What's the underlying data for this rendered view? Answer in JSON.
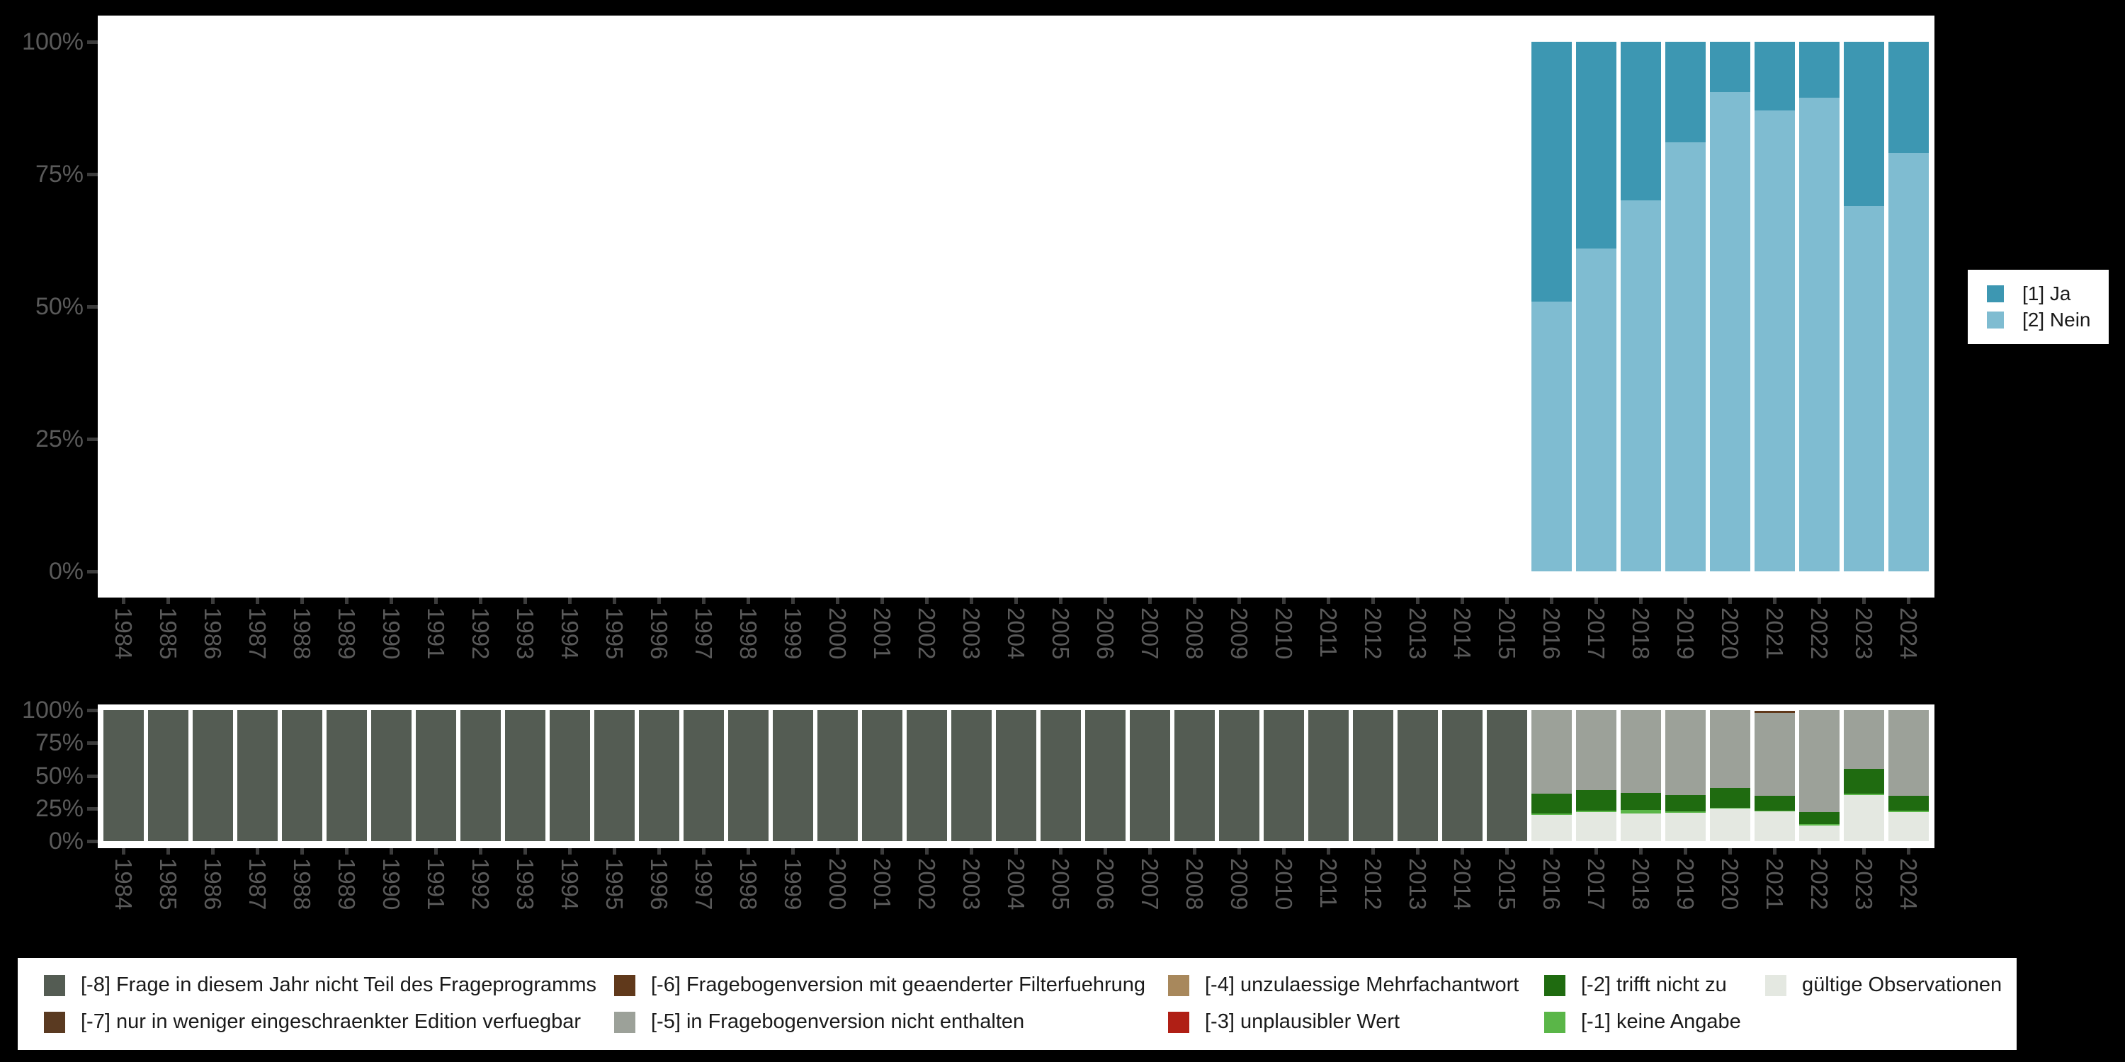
{
  "colors": {
    "page_bg": "#000000",
    "plot_bg": "#ffffff",
    "ja": "#3d97b2",
    "nein": "#7fbcd1",
    "m8": "#545c53",
    "m7": "#5a3a21",
    "m6": "#60391b",
    "m5": "#9ca199",
    "m4": "#a8885c",
    "m3": "#b01f15",
    "m2": "#1f6b10",
    "m1": "#5ab648",
    "valid": "#e4e8e1",
    "axis_text": "#5a5a5a",
    "tick": "#3c3c3c",
    "legend_text": "#1a1a1a"
  },
  "y_axis_labels": [
    "100%",
    "75%",
    "50%",
    "25%",
    "0%"
  ],
  "legend_right": {
    "items": [
      {
        "label": "[1] Ja",
        "colorKey": "ja"
      },
      {
        "label": "[2] Nein",
        "colorKey": "nein"
      }
    ]
  },
  "legend_bottom": {
    "items": [
      {
        "label": "[-8] Frage in diesem Jahr nicht Teil des Frageprogramms",
        "colorKey": "m8",
        "row": 0,
        "col": 0
      },
      {
        "label": "[-6] Fragebogenversion mit geaenderter Filterfuehrung",
        "colorKey": "m6",
        "row": 0,
        "col": 1
      },
      {
        "label": "[-4] unzulaessige Mehrfachantwort",
        "colorKey": "m4",
        "row": 0,
        "col": 2
      },
      {
        "label": "[-2] trifft nicht zu",
        "colorKey": "m2",
        "row": 0,
        "col": 3
      },
      {
        "label": "gültige Observationen",
        "colorKey": "valid",
        "row": 0,
        "col": 4
      },
      {
        "label": "[-7] nur in weniger eingeschraenkter Edition verfuegbar",
        "colorKey": "m7",
        "row": 1,
        "col": 0
      },
      {
        "label": "[-5] in Fragebogenversion nicht enthalten",
        "colorKey": "m5",
        "row": 1,
        "col": 1
      },
      {
        "label": "[-3] unplausibler Wert",
        "colorKey": "m3",
        "row": 1,
        "col": 2
      },
      {
        "label": "[-1] keine Angabe",
        "colorKey": "m1",
        "row": 1,
        "col": 3
      }
    ]
  },
  "chart_data": [
    {
      "type": "bar",
      "stacked": true,
      "title": "",
      "xlabel": "",
      "ylabel": "",
      "ylim": [
        0,
        100
      ],
      "y_ticks": [
        "0%",
        "25%",
        "50%",
        "75%",
        "100%"
      ],
      "grid": false,
      "legend_position": "right",
      "categories": [
        1984,
        1985,
        1986,
        1987,
        1988,
        1989,
        1990,
        1991,
        1992,
        1993,
        1994,
        1995,
        1996,
        1997,
        1998,
        1999,
        2000,
        2001,
        2002,
        2003,
        2004,
        2005,
        2006,
        2007,
        2008,
        2009,
        2010,
        2011,
        2012,
        2013,
        2014,
        2015,
        2016,
        2017,
        2018,
        2019,
        2020,
        2021,
        2022,
        2023,
        2024
      ],
      "series": [
        {
          "name": "[1] Ja",
          "colorKey": "ja",
          "key": "ja",
          "values": [
            null,
            null,
            null,
            null,
            null,
            null,
            null,
            null,
            null,
            null,
            null,
            null,
            null,
            null,
            null,
            null,
            null,
            null,
            null,
            null,
            null,
            null,
            null,
            null,
            null,
            null,
            null,
            null,
            null,
            null,
            null,
            null,
            49,
            39,
            30,
            19,
            9.5,
            13,
            10.5,
            31,
            21
          ]
        },
        {
          "name": "[2] Nein",
          "colorKey": "nein",
          "key": "nein",
          "values": [
            null,
            null,
            null,
            null,
            null,
            null,
            null,
            null,
            null,
            null,
            null,
            null,
            null,
            null,
            null,
            null,
            null,
            null,
            null,
            null,
            null,
            null,
            null,
            null,
            null,
            null,
            null,
            null,
            null,
            null,
            null,
            null,
            51,
            61,
            70,
            81,
            90.5,
            87,
            89.5,
            69,
            79
          ]
        }
      ]
    },
    {
      "type": "bar",
      "stacked": true,
      "title": "",
      "xlabel": "",
      "ylabel": "",
      "ylim": [
        0,
        100
      ],
      "y_ticks": [
        "0%",
        "25%",
        "50%",
        "75%",
        "100%"
      ],
      "grid": false,
      "legend_position": "bottom",
      "categories": [
        1984,
        1985,
        1986,
        1987,
        1988,
        1989,
        1990,
        1991,
        1992,
        1993,
        1994,
        1995,
        1996,
        1997,
        1998,
        1999,
        2000,
        2001,
        2002,
        2003,
        2004,
        2005,
        2006,
        2007,
        2008,
        2009,
        2010,
        2011,
        2012,
        2013,
        2014,
        2015,
        2016,
        2017,
        2018,
        2019,
        2020,
        2021,
        2022,
        2023,
        2024
      ],
      "series": [
        {
          "name": "[-6] Fragebogenversion mit geaenderter Filterfuehrung",
          "colorKey": "m6",
          "key": "m6",
          "values": [
            0,
            0,
            0,
            0,
            0,
            0,
            0,
            0,
            0,
            0,
            0,
            0,
            0,
            0,
            0,
            0,
            0,
            0,
            0,
            0,
            0,
            0,
            0,
            0,
            0,
            0,
            0,
            0,
            0,
            0,
            0,
            0,
            0,
            0,
            0,
            0,
            0,
            1.5,
            0,
            0,
            0
          ]
        },
        {
          "name": "[-8] Frage in diesem Jahr nicht Teil des Frageprogramms",
          "colorKey": "m8",
          "key": "m8",
          "values": [
            100,
            100,
            100,
            100,
            100,
            100,
            100,
            100,
            100,
            100,
            100,
            100,
            100,
            100,
            100,
            100,
            100,
            100,
            100,
            100,
            100,
            100,
            100,
            100,
            100,
            100,
            100,
            100,
            100,
            100,
            100,
            100,
            0,
            0,
            0,
            0,
            0,
            0,
            0,
            0,
            0
          ]
        },
        {
          "name": "[-5] in Fragebogenversion nicht enthalten",
          "colorKey": "m5",
          "key": "m5",
          "values": [
            0,
            0,
            0,
            0,
            0,
            0,
            0,
            0,
            0,
            0,
            0,
            0,
            0,
            0,
            0,
            0,
            0,
            0,
            0,
            0,
            0,
            0,
            0,
            0,
            0,
            0,
            0,
            0,
            0,
            0,
            0,
            0,
            64,
            61,
            63.5,
            65,
            59.5,
            63.5,
            78,
            45,
            65.5
          ]
        },
        {
          "name": "[-2] trifft nicht zu",
          "colorKey": "m2",
          "key": "m2",
          "values": [
            0,
            0,
            0,
            0,
            0,
            0,
            0,
            0,
            0,
            0,
            0,
            0,
            0,
            0,
            0,
            0,
            0,
            0,
            0,
            0,
            0,
            0,
            0,
            0,
            0,
            0,
            0,
            0,
            0,
            0,
            0,
            0,
            15,
            15.5,
            12.5,
            12.5,
            15,
            11.5,
            9,
            19,
            11.5
          ]
        },
        {
          "name": "[-1] keine Angabe",
          "colorKey": "m1",
          "key": "m1",
          "values": [
            0,
            0,
            0,
            0,
            0,
            0,
            0,
            0,
            0,
            0,
            0,
            0,
            0,
            0,
            0,
            0,
            0,
            0,
            0,
            0,
            0,
            0,
            0,
            0,
            0,
            0,
            0,
            0,
            0,
            0,
            0,
            0,
            1,
            1.5,
            3,
            1,
            0.5,
            0.5,
            1,
            1,
            1
          ]
        },
        {
          "name": "gültige Observationen",
          "colorKey": "valid",
          "key": "valid",
          "values": [
            0,
            0,
            0,
            0,
            0,
            0,
            0,
            0,
            0,
            0,
            0,
            0,
            0,
            0,
            0,
            0,
            0,
            0,
            0,
            0,
            0,
            0,
            0,
            0,
            0,
            0,
            0,
            0,
            0,
            0,
            0,
            0,
            20,
            22,
            21,
            21.5,
            25,
            22.5,
            12,
            35,
            22
          ]
        }
      ]
    }
  ]
}
